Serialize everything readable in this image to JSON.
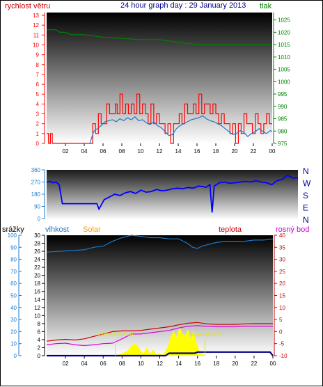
{
  "colors": {
    "wind": "#ff0000",
    "wind_avg": "#1e78c8",
    "pressure": "#008000",
    "direction": "#0000ff",
    "humidity": "#1e78c8",
    "solar": "#ffff00",
    "temperature": "#cc0000",
    "dewpoint": "#dd00dd",
    "rain": "#000080",
    "marker": "#e8e800",
    "title": "#00008b",
    "rain_axis": "#1e78c8",
    "solar_label": "#ff9900",
    "dewpoint_label": "#cc00cc"
  },
  "chart_data": [
    {
      "type": "line",
      "title": "24 hour graph day : 29 January 2013",
      "ylabel": "rychlost větru",
      "y2label": "tlak",
      "x_ticks": [
        "02",
        "04",
        "06",
        "08",
        "10",
        "12",
        "14",
        "16",
        "18",
        "20",
        "22",
        "00"
      ],
      "ylim": [
        0,
        13
      ],
      "y_ticks": [
        "0",
        "1",
        "2",
        "3",
        "4",
        "5",
        "6",
        "7",
        "8",
        "9",
        "10",
        "11",
        "12",
        "13"
      ],
      "y2lim": [
        975,
        1028
      ],
      "y2_ticks": [
        "975",
        "980",
        "985",
        "990",
        "995",
        "1000",
        "1005",
        "1010",
        "1015",
        "1020",
        "1025"
      ],
      "grid": false,
      "series": [
        {
          "role": "wind_gust",
          "x": [
            0,
            0.2,
            0.4,
            0.6,
            2.5,
            4.6,
            4.9,
            5.2,
            5.5,
            5.8,
            6.1,
            6.4,
            6.7,
            7.0,
            7.3,
            7.5,
            7.8,
            8.1,
            8.4,
            8.7,
            9.0,
            9.3,
            9.6,
            9.9,
            10.2,
            10.5,
            10.8,
            11.1,
            11.4,
            11.7,
            12.0,
            12.3,
            12.6,
            12.9,
            13.2,
            13.5,
            13.8,
            14.1,
            14.4,
            14.7,
            15.0,
            15.3,
            15.6,
            15.9,
            16.2,
            16.5,
            16.8,
            17.1,
            17.4,
            17.7,
            18.0,
            18.3,
            18.6,
            18.9,
            19.2,
            19.5,
            19.8,
            20.1,
            20.4,
            20.7,
            21.0,
            21.3,
            21.6,
            21.9,
            22.2,
            22.5,
            22.8,
            23.1,
            23.4,
            23.7,
            24.0
          ],
          "values": [
            1,
            0,
            1,
            0,
            0,
            0,
            2,
            1,
            3,
            2,
            2,
            4,
            3,
            3,
            4,
            3,
            5,
            3,
            4,
            3,
            4,
            3,
            5,
            3,
            4,
            3,
            2,
            4,
            2,
            3,
            2,
            2,
            1,
            2,
            0,
            2,
            2,
            3,
            2,
            4,
            3,
            3,
            4,
            3,
            5,
            3,
            4,
            4,
            3,
            4,
            3,
            2,
            3,
            2,
            2,
            1,
            2,
            0,
            2,
            1,
            3,
            2,
            2,
            1,
            3,
            2,
            1,
            2,
            3,
            2,
            2
          ]
        },
        {
          "role": "wind_avg",
          "x": [
            4.6,
            5.0,
            5.4,
            5.8,
            6.2,
            6.6,
            7.0,
            7.4,
            7.8,
            8.2,
            8.6,
            9.0,
            9.4,
            9.8,
            10.2,
            10.6,
            11.0,
            11.4,
            11.8,
            12.2,
            12.6,
            13.0,
            13.4,
            13.8,
            14.2,
            14.6,
            15.0,
            15.4,
            15.8,
            16.2,
            16.6,
            17.0,
            17.4,
            17.8,
            18.2,
            18.6,
            19.0,
            19.4,
            19.8,
            20.2,
            20.6,
            21.0,
            21.4,
            21.8,
            22.2,
            22.6,
            23.0,
            23.4,
            23.8,
            24.0
          ],
          "values": [
            0,
            1.2,
            1.5,
            1.8,
            2.2,
            2.3,
            2.4,
            2.2,
            2.5,
            2.3,
            2.6,
            2.4,
            2.7,
            2.3,
            2.4,
            2.1,
            1.9,
            2.2,
            1.8,
            1.6,
            1.2,
            0.8,
            0.9,
            1.5,
            1.8,
            2.0,
            2.2,
            2.4,
            2.5,
            2.6,
            2.8,
            2.5,
            2.3,
            2.2,
            2.0,
            1.8,
            1.5,
            1.2,
            0.9,
            1.0,
            1.3,
            1.1,
            0.7,
            1.0,
            1.2,
            1.5,
            1.2,
            1.0,
            1.3,
            1.2
          ]
        },
        {
          "role": "pressure",
          "axis": "right",
          "x": [
            0,
            1.0,
            1.4,
            2.0,
            2.6,
            3.0,
            4.0,
            6.0,
            8.0,
            10.0,
            12.0,
            14.0,
            16.0,
            17.0,
            19.0,
            21.0,
            22.5,
            24.0
          ],
          "values": [
            1021,
            1021,
            1020,
            1020,
            1019,
            1019,
            1019,
            1018,
            1017.5,
            1017,
            1017,
            1016,
            1015,
            1015,
            1015,
            1015,
            1015,
            1015
          ]
        }
      ]
    },
    {
      "type": "scatter",
      "ylabel_right": [
        "N",
        "W",
        "S",
        "E",
        "N"
      ],
      "ylim": [
        0,
        360
      ],
      "y_ticks": [
        "0",
        "90",
        "180",
        "270",
        "360"
      ],
      "x": [
        0,
        0.3,
        0.6,
        0.9,
        1.2,
        1.5,
        3.0,
        4.8,
        5.0,
        5.5,
        6.0,
        6.5,
        7.0,
        7.5,
        8.0,
        8.5,
        9.0,
        9.5,
        10.0,
        10.5,
        11.0,
        11.5,
        12.0,
        12.5,
        13.0,
        13.5,
        14.0,
        14.5,
        15.0,
        15.2,
        15.4,
        15.6,
        15.8,
        16.0,
        16.5,
        17.0,
        17.5,
        18.0,
        18.5,
        19.0,
        19.5,
        20.0,
        20.5,
        21.0,
        21.5,
        22.0,
        22.5,
        23.0,
        23.5,
        24.0
      ],
      "values": [
        270,
        275,
        265,
        270,
        250,
        110,
        110,
        110,
        70,
        140,
        160,
        180,
        170,
        190,
        200,
        185,
        210,
        195,
        200,
        215,
        205,
        210,
        220,
        225,
        220,
        230,
        225,
        240,
        235,
        230,
        240,
        250,
        45,
        240,
        265,
        270,
        260,
        265,
        270,
        275,
        270,
        280,
        270,
        265,
        250,
        280,
        290,
        320,
        300,
        300
      ]
    },
    {
      "type": "line",
      "labels": {
        "rain": "srážky",
        "humidity": "vlhkost",
        "solar": "Solar",
        "temperature": "teplota",
        "dewpoint": "rosný bod"
      },
      "annotations": [
        "východ slunce",
        "západ slunce"
      ],
      "rain_ticks": [
        "0",
        "10",
        "20",
        "30",
        "40",
        "50",
        "60",
        "70",
        "80",
        "90",
        "100"
      ],
      "humidity_ticks": [
        "0",
        "2",
        "4",
        "6",
        "8",
        "10",
        "12",
        "14",
        "16",
        "18",
        "20",
        "22",
        "24",
        "26",
        "28",
        "30"
      ],
      "temperature_ticks": [
        "-10",
        "-5",
        "0",
        "5",
        "10",
        "15",
        "20",
        "25",
        "30",
        "35",
        "40"
      ],
      "x_ticks": [
        "02",
        "04",
        "06",
        "08",
        "10",
        "12",
        "14",
        "16",
        "18",
        "20",
        "22",
        "00"
      ],
      "series": [
        {
          "role": "humidity",
          "x": [
            0,
            2,
            4,
            5,
            6,
            7,
            8,
            9,
            10,
            11,
            12,
            13,
            14,
            14.5,
            15,
            15.5,
            16,
            16.5,
            17,
            18,
            19,
            20,
            21,
            22,
            23,
            24
          ],
          "values": [
            86,
            87,
            88,
            90,
            91,
            95,
            98,
            100,
            99,
            98,
            98,
            97,
            97,
            95,
            93,
            90,
            89,
            91,
            92,
            94,
            95,
            95,
            95,
            96,
            96,
            97
          ]
        },
        {
          "role": "temperature",
          "x": [
            0,
            1,
            2,
            3,
            4,
            5,
            6,
            7,
            8,
            9,
            10,
            11,
            12,
            13,
            14,
            15,
            16,
            17,
            18,
            19,
            20,
            21,
            22,
            23,
            24
          ],
          "values": [
            -4,
            -3.5,
            -3.2,
            -3.5,
            -3,
            -2,
            -1,
            0,
            0.3,
            0.3,
            0.5,
            1,
            1.5,
            2,
            2.8,
            3.5,
            3.8,
            3.2,
            3,
            3,
            3,
            3.2,
            3.3,
            3.3,
            3.3
          ]
        },
        {
          "role": "dewpoint",
          "x": [
            0,
            1,
            2,
            3,
            4,
            5,
            6,
            7,
            8,
            9,
            10,
            11,
            12,
            13,
            14,
            15,
            16,
            17,
            18,
            19,
            20,
            21,
            22,
            23,
            24
          ],
          "values": [
            -5.5,
            -5,
            -4.8,
            -5.5,
            -5.8,
            -5.5,
            -5,
            -4.8,
            -3,
            -1,
            -1,
            -0.5,
            0,
            0.5,
            1.5,
            2.2,
            2.5,
            2.2,
            2,
            2,
            2,
            2.2,
            2.2,
            2.2,
            2.2
          ]
        },
        {
          "role": "rain",
          "x": [
            0,
            12.6,
            13,
            15.7,
            16,
            19,
            22,
            23.7,
            24
          ],
          "values": [
            0,
            0,
            2,
            2,
            3,
            3,
            3,
            3,
            0
          ]
        },
        {
          "role": "solar",
          "x": [
            7.3,
            8.0,
            8.6,
            9.0,
            9.4,
            9.8,
            10.0,
            10.3,
            10.6,
            11.0,
            11.3,
            11.6,
            12.0,
            12.3,
            12.6,
            12.9,
            13.2,
            13.5,
            13.8,
            14.1,
            14.4,
            14.7,
            15.0,
            15.3,
            15.6,
            15.9,
            16.2,
            16.5,
            16.8
          ],
          "values": [
            0,
            0.5,
            1.2,
            2.5,
            3,
            2,
            1,
            0.5,
            2,
            0.5,
            1.5,
            0.3,
            0.5,
            0.2,
            1,
            2.5,
            5,
            6,
            4.5,
            7,
            5.5,
            5,
            6.5,
            4,
            6,
            3,
            1,
            0.5,
            0
          ]
        }
      ],
      "sunrise_x": 7.3,
      "sunset_x": 16.8
    }
  ]
}
